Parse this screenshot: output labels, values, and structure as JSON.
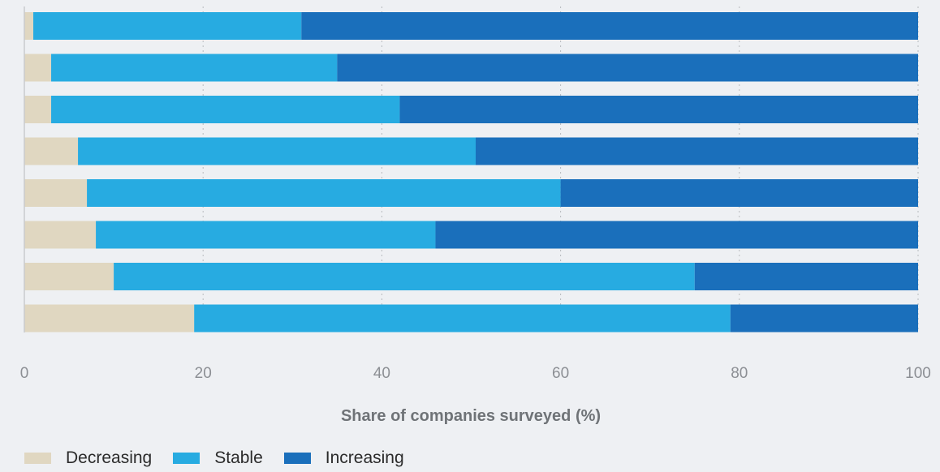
{
  "chart_data": {
    "type": "bar",
    "orientation": "horizontal",
    "stacked": true,
    "title": "",
    "xlabel": "Share of companies surveyed (%)",
    "ylabel": "",
    "xlim": [
      0,
      100
    ],
    "x_ticks": [
      "0",
      "20",
      "40",
      "60",
      "80",
      "100"
    ],
    "categories": [
      "",
      "",
      "",
      "",
      "",
      "",
      "",
      ""
    ],
    "grid": "vertical dotted",
    "legend_position": "bottom-left",
    "series": [
      {
        "name": "Decreasing",
        "color": "#e0d7c1",
        "values": [
          1,
          3,
          3,
          6,
          7,
          8,
          10,
          19
        ]
      },
      {
        "name": "Stable",
        "color": "#27abe1",
        "values": [
          30,
          32,
          39,
          44.5,
          53,
          38,
          65,
          60
        ]
      },
      {
        "name": "Increasing",
        "color": "#1a6fbb",
        "values": [
          69,
          65,
          58,
          49.5,
          40,
          54,
          25,
          21
        ]
      }
    ]
  },
  "legend": {
    "decreasing_label": "Decreasing",
    "stable_label": "Stable",
    "increasing_label": "Increasing"
  }
}
